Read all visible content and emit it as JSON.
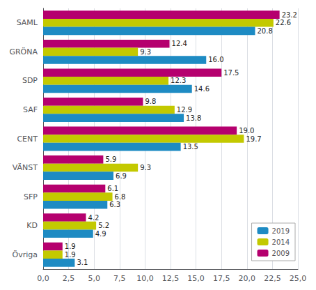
{
  "chart_data": {
    "type": "bar",
    "orientation": "horizontal",
    "categories": [
      "Övriga",
      "KD",
      "SFP",
      "VÄNST",
      "CENT",
      "SAF",
      "SDP",
      "GRÖNA",
      "SAML"
    ],
    "series": [
      {
        "name": "2019",
        "color": "#1e8bc3",
        "values": [
          3.1,
          4.9,
          6.3,
          6.9,
          13.5,
          13.8,
          14.6,
          16.0,
          20.8
        ],
        "value_labels": [
          "3.1",
          "4.9",
          "6.3",
          "6.9",
          "13.5",
          "13.8",
          "14.6",
          "16.0",
          "20.8"
        ]
      },
      {
        "name": "2014",
        "color": "#c3c900",
        "values": [
          1.9,
          5.2,
          6.8,
          9.3,
          19.7,
          12.9,
          12.3,
          9.3,
          22.6
        ],
        "value_labels": [
          "1.9",
          "5.2",
          "6.8",
          "9.3",
          "19.7",
          "12.9",
          "12.3",
          "9.3",
          "22.6"
        ]
      },
      {
        "name": "2009",
        "color": "#b5006e",
        "values": [
          1.9,
          4.2,
          6.1,
          5.9,
          19.0,
          9.8,
          17.5,
          12.4,
          23.2
        ],
        "value_labels": [
          "1.9",
          "4.2",
          "6.1",
          "5.9",
          "19.0",
          "9.8",
          "17.5",
          "12.4",
          "23.2"
        ]
      }
    ],
    "xlim": [
      0,
      25.0
    ],
    "xticks": [
      {
        "value": 0.0,
        "label": "0,0"
      },
      {
        "value": 2.5,
        "label": "2,5"
      },
      {
        "value": 5.0,
        "label": "5,0"
      },
      {
        "value": 7.5,
        "label": "7,5"
      },
      {
        "value": 10.0,
        "label": "10,0"
      },
      {
        "value": 12.5,
        "label": "12,5"
      },
      {
        "value": 15.0,
        "label": "15,0"
      },
      {
        "value": 17.5,
        "label": "17,5"
      },
      {
        "value": 20.0,
        "label": "20,0"
      },
      {
        "value": 22.5,
        "label": "22,5"
      },
      {
        "value": 25.0,
        "label": "25,0"
      }
    ],
    "grid": true,
    "legend": "lower right",
    "data_labels": true
  }
}
